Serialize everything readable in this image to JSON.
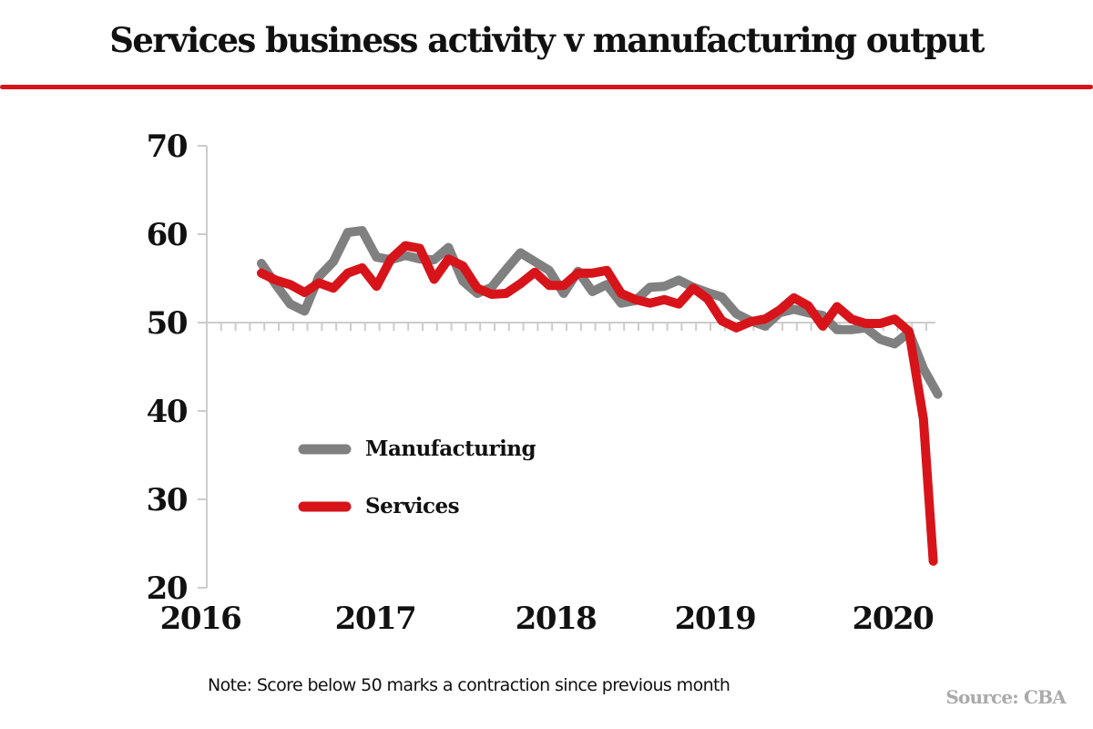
{
  "chart_data": {
    "type": "line",
    "title": "Services business activity v manufacturing output",
    "xlabel": "",
    "ylabel": "",
    "ylim": [
      20,
      70
    ],
    "yticks": [
      "70",
      "60",
      "50",
      "40",
      "30",
      "20"
    ],
    "ytick_values": [
      70,
      60,
      50,
      40,
      30,
      20
    ],
    "xticks": [
      "2016",
      "2017",
      "2018",
      "2019",
      "2020"
    ],
    "xtick_values": [
      2016,
      2017,
      2018,
      2019,
      2020
    ],
    "x_start": "2016-05",
    "x_frequency": "monthly",
    "reference_line": 50,
    "grid": false,
    "legend_position": "center-left",
    "series": [
      {
        "name": "Manufacturing",
        "color": "#808080",
        "values": [
          56.7,
          54.3,
          52.1,
          51.3,
          55.2,
          56.9,
          60.2,
          60.4,
          57.4,
          57.1,
          57.6,
          57.2,
          57.1,
          58.5,
          54.7,
          53.3,
          54.0,
          56.0,
          57.9,
          56.9,
          55.9,
          53.3,
          55.8,
          53.5,
          54.3,
          52.2,
          52.5,
          54.0,
          54.1,
          54.8,
          54.0,
          53.4,
          52.9,
          51.0,
          50.2,
          49.6,
          51.1,
          51.5,
          51.1,
          50.8,
          49.2,
          49.2,
          49.4,
          48.1,
          47.6,
          48.9,
          44.8,
          41.9
        ]
      },
      {
        "name": "Services",
        "color": "#d7141a",
        "values": [
          55.6,
          54.8,
          54.3,
          53.4,
          54.5,
          53.9,
          55.6,
          56.2,
          54.1,
          57.2,
          58.7,
          58.4,
          54.9,
          57.2,
          56.4,
          53.9,
          53.2,
          53.3,
          54.4,
          55.7,
          54.2,
          54.2,
          55.6,
          55.6,
          55.9,
          53.3,
          52.6,
          52.2,
          52.6,
          52.1,
          53.9,
          52.7,
          50.2,
          49.4,
          50.1,
          50.4,
          51.4,
          52.8,
          51.9,
          49.6,
          51.8,
          50.4,
          49.9,
          49.9,
          50.4,
          49.0,
          39.1,
          23.0
        ]
      }
    ]
  },
  "header": {
    "title": "Services business activity v manufacturing output"
  },
  "footer": {
    "note": "Note: Score below 50 marks a contraction since previous month",
    "source": "Source: CBA"
  },
  "legend": {
    "items": [
      {
        "label": "Manufacturing",
        "color": "#808080"
      },
      {
        "label": "Services",
        "color": "#d7141a"
      }
    ]
  },
  "colors": {
    "accent": "#d7141a",
    "axis": "#cccccc",
    "text": "#111111",
    "source": "#aaaaaa"
  }
}
